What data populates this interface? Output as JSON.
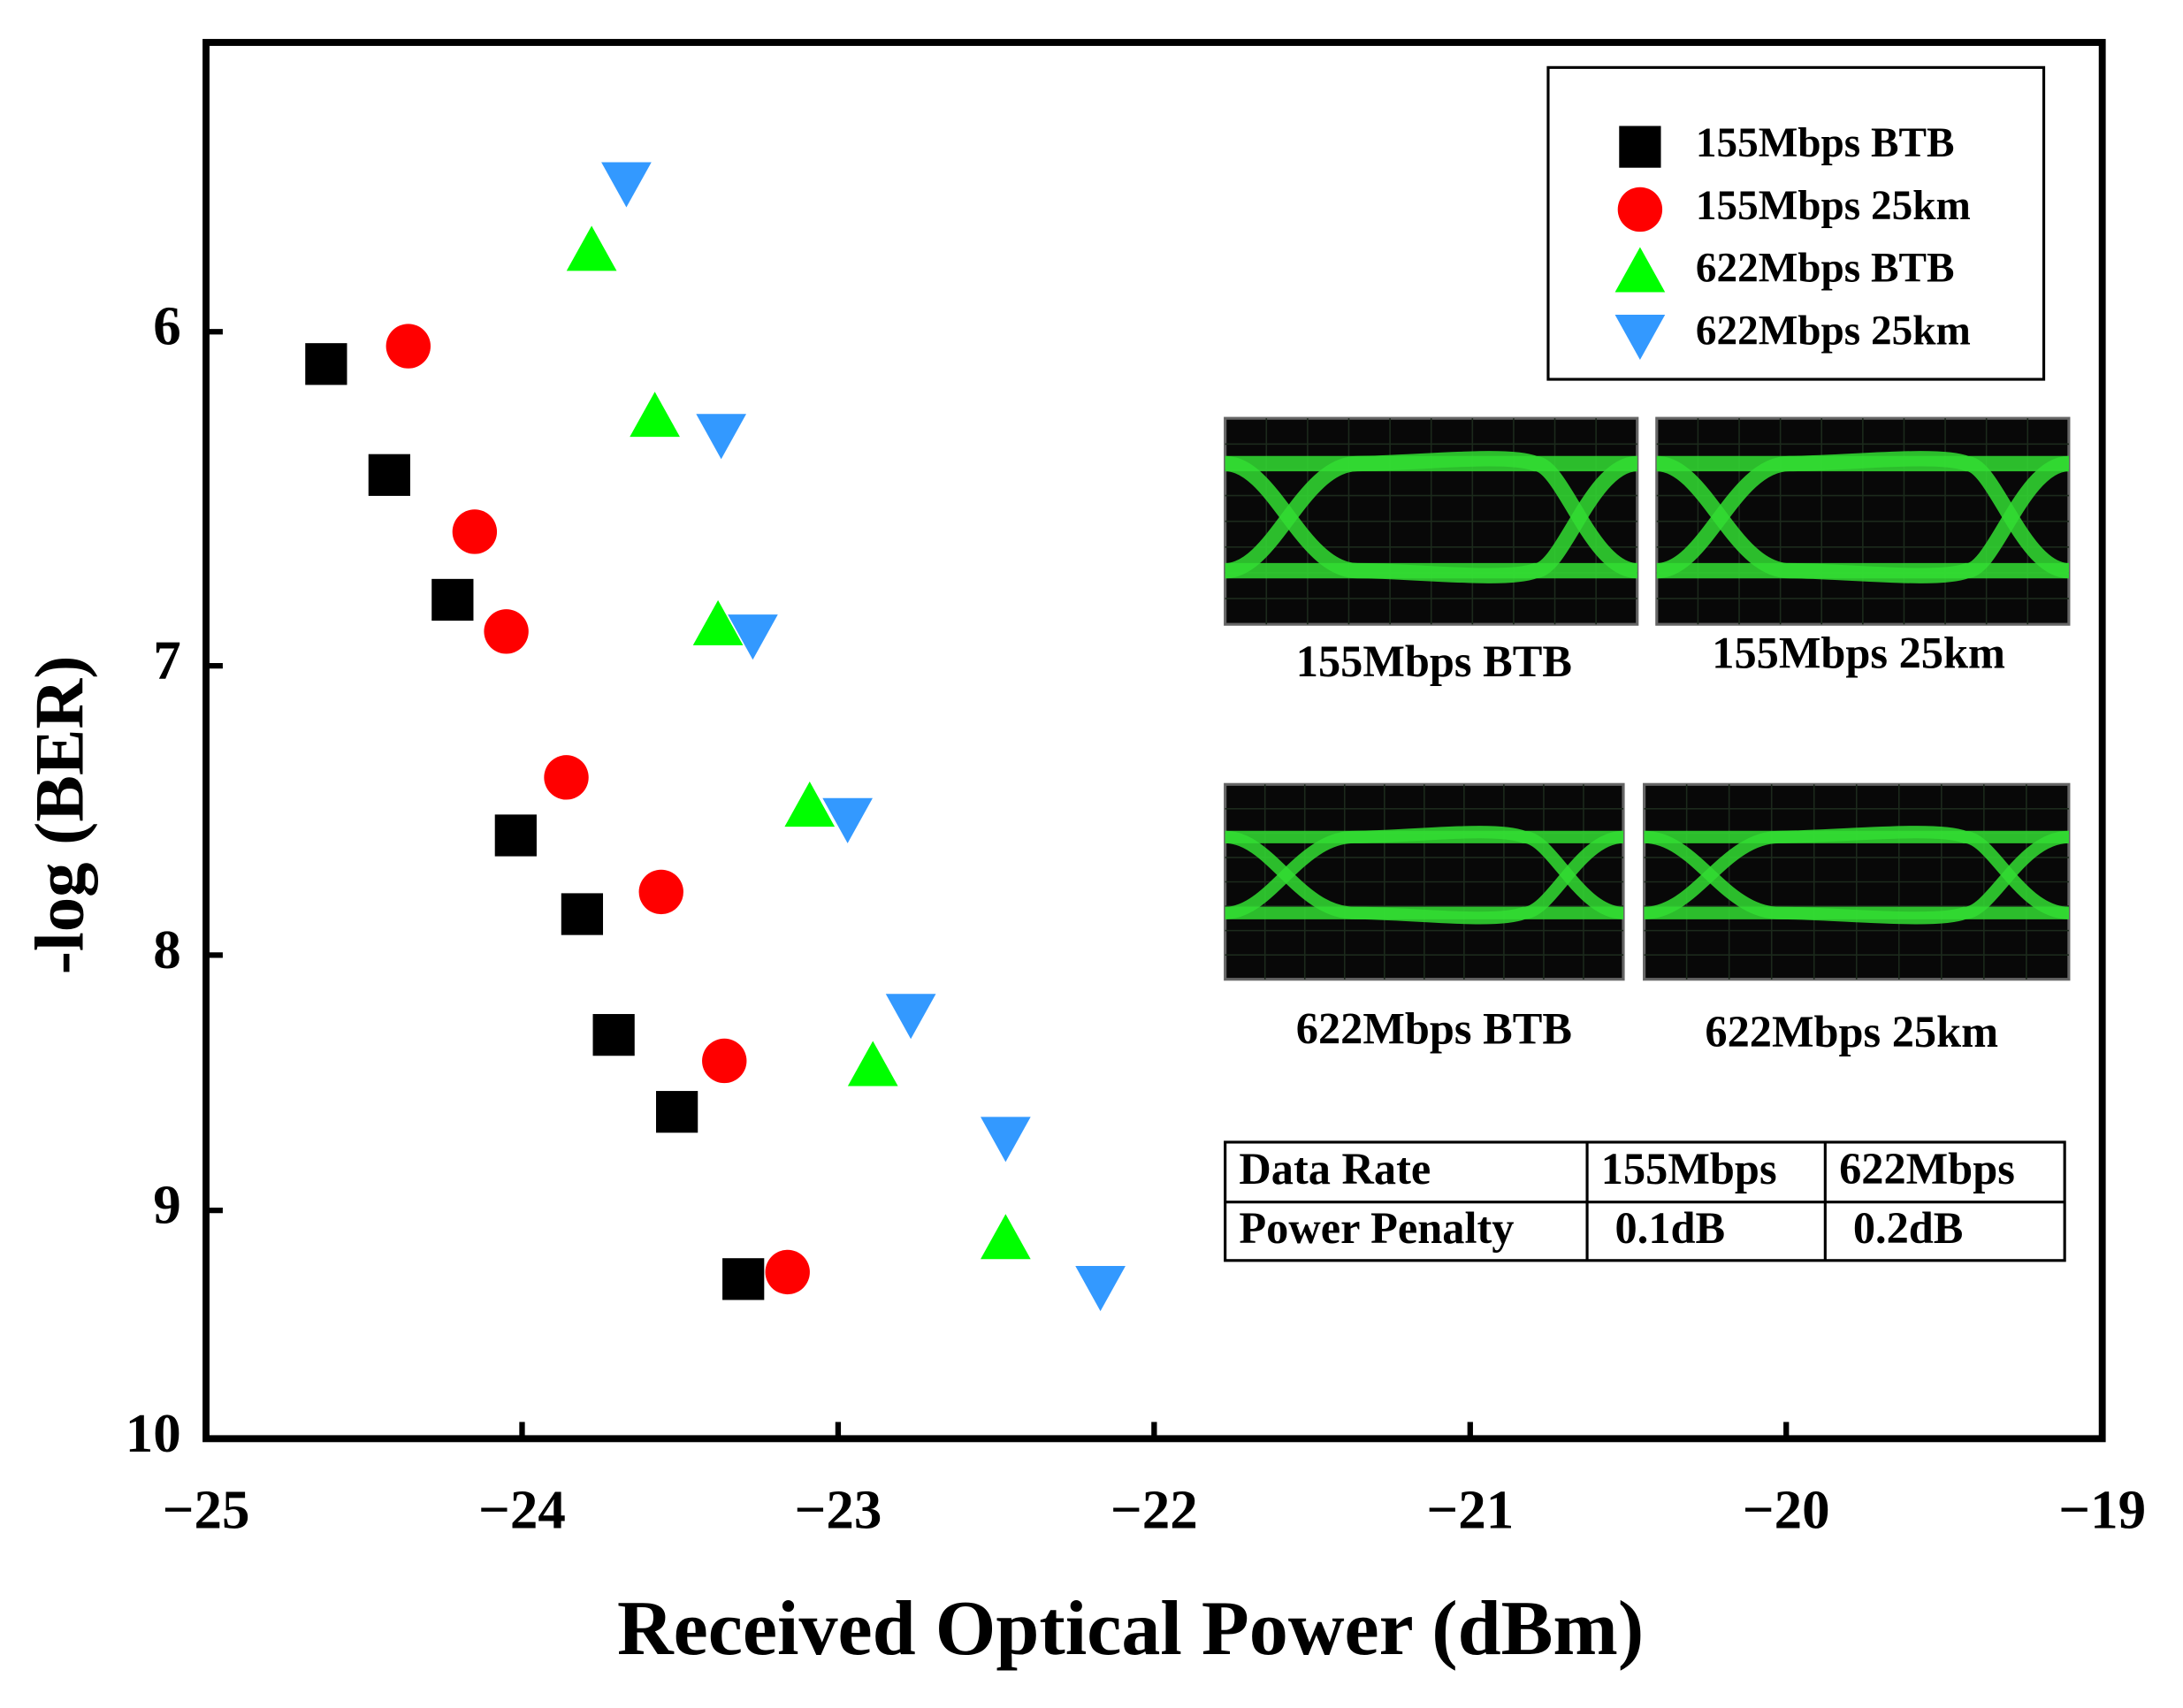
{
  "chart_data": {
    "type": "scatter",
    "x_label": "Received Optical Power (dBm)",
    "y_label": "-log (BER)",
    "xlim": [
      -25,
      -19
    ],
    "xticks": [
      {
        "value": -25,
        "label": "−25"
      },
      {
        "value": -24,
        "label": "−24"
      },
      {
        "value": -23,
        "label": "−23"
      },
      {
        "value": -22,
        "label": "−22"
      },
      {
        "value": -21,
        "label": "−21"
      },
      {
        "value": -20,
        "label": "−20"
      },
      {
        "value": -19,
        "label": "−19"
      }
    ],
    "ylim": [
      5.25,
      10
    ],
    "yticks": [
      6,
      7,
      8,
      9,
      10
    ],
    "y_log_scale": true,
    "y_inverted": true,
    "legend": "upper right",
    "series": [
      {
        "name": "155Mbps BTB",
        "color": "#000000",
        "marker": "square",
        "x": [
          -24.62,
          -24.42,
          -24.22,
          -24.02,
          -23.81,
          -23.71,
          -23.51,
          -23.3
        ],
        "values": [
          6.09,
          6.41,
          6.79,
          7.57,
          7.85,
          8.3,
          8.6,
          9.29
        ]
      },
      {
        "name": "155Mbps 25km",
        "color": "#ff0000",
        "marker": "circle",
        "x": [
          -24.36,
          -24.15,
          -24.05,
          -23.86,
          -23.56,
          -23.36,
          -23.16
        ],
        "values": [
          6.04,
          6.58,
          6.89,
          7.37,
          7.77,
          8.4,
          9.26
        ]
      },
      {
        "name": "622Mbps BTB",
        "color": "#00ff00",
        "marker": "triangle-up",
        "x": [
          -23.78,
          -23.58,
          -23.38,
          -23.09,
          -22.89,
          -22.47
        ],
        "values": [
          5.78,
          6.24,
          6.87,
          7.47,
          8.42,
          9.12
        ]
      },
      {
        "name": "622Mbps 25km",
        "color": "#3399ff",
        "marker": "triangle-down",
        "x": [
          -23.67,
          -23.37,
          -23.27,
          -22.97,
          -22.77,
          -22.47,
          -22.17
        ],
        "values": [
          5.6,
          6.29,
          6.9,
          7.51,
          8.22,
          8.7,
          9.32
        ]
      }
    ],
    "eye_diagrams": [
      "155Mbps BTB",
      "155Mbps 25km",
      "622Mbps BTB",
      "622Mbps 25km"
    ],
    "table": {
      "rows": [
        [
          "Data Rate",
          "155Mbps",
          "622Mbps"
        ],
        [
          "Power Penalty",
          "0.1dB",
          "0.2dB"
        ]
      ]
    }
  }
}
